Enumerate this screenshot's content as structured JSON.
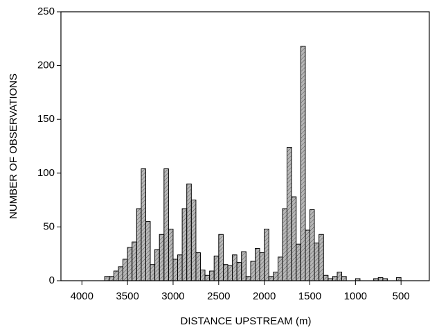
{
  "chart_data": {
    "type": "histogram",
    "xlabel": "DISTANCE UPSTREAM (m)",
    "ylabel": "NUMBER OF OBSERVATIONS",
    "bins": [
      3750,
      3700,
      3650,
      3600,
      3550,
      3500,
      3450,
      3400,
      3350,
      3300,
      3250,
      3200,
      3150,
      3100,
      3050,
      3000,
      2950,
      2900,
      2850,
      2800,
      2750,
      2700,
      2650,
      2600,
      2550,
      2500,
      2450,
      2400,
      2350,
      2300,
      2250,
      2200,
      2150,
      2100,
      2050,
      2000,
      1950,
      1900,
      1850,
      1800,
      1750,
      1700,
      1650,
      1600,
      1550,
      1500,
      1450,
      1400,
      1350,
      1300,
      1250,
      1200,
      1150,
      1100,
      1050,
      1000,
      950,
      900,
      850,
      800,
      750,
      700,
      650,
      600,
      550,
      500,
      450
    ],
    "values": [
      4,
      4,
      9,
      13,
      20,
      31,
      36,
      67,
      104,
      55,
      15,
      29,
      43,
      104,
      48,
      20,
      24,
      67,
      90,
      75,
      26,
      10,
      5,
      9,
      23,
      43,
      15,
      14,
      24,
      17,
      27,
      4,
      18,
      30,
      26,
      48,
      4,
      8,
      22,
      67,
      124,
      78,
      34,
      218,
      47,
      66,
      35,
      43,
      5,
      2,
      4,
      8,
      4,
      0,
      0,
      2,
      0,
      0,
      0,
      2,
      3,
      2,
      0,
      0,
      3,
      0
    ],
    "color": "#b8b8b8",
    "xlim": [
      4230,
      190
    ],
    "xticks": [
      4000,
      3500,
      3000,
      2500,
      2000,
      1500,
      1000,
      500
    ],
    "ylim": [
      0,
      250
    ],
    "yticks": [
      0,
      50,
      100,
      150,
      200,
      250
    ]
  }
}
